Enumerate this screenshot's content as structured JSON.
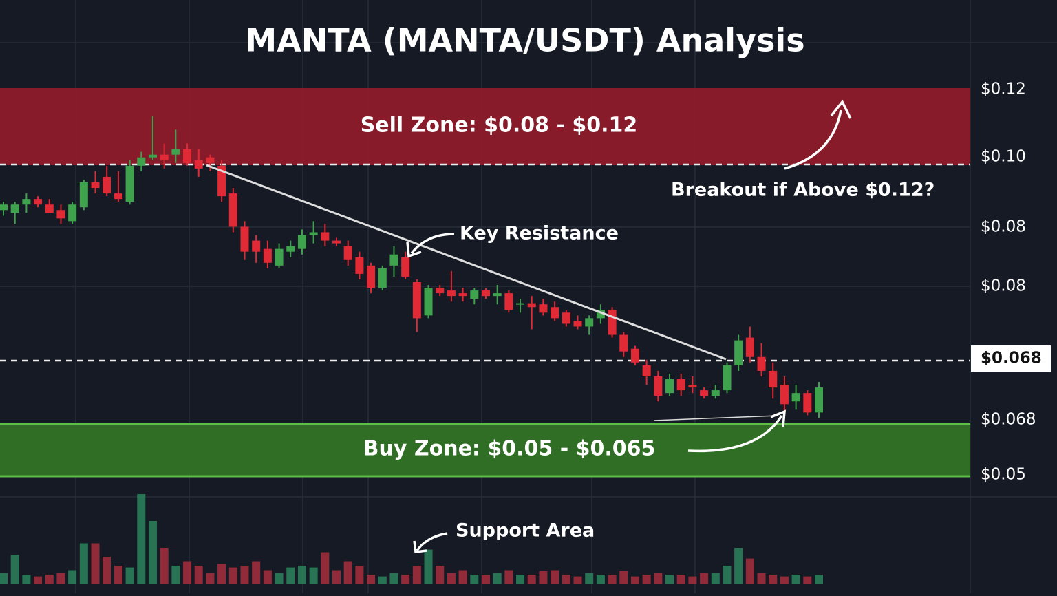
{
  "chart_data": {
    "type": "candlestick",
    "title": "MANTA (MANTA/USDT) Analysis",
    "ylim": [
      0.05,
      0.12
    ],
    "up_color": "#3fa34d",
    "down_color": "#e02a36",
    "price_labels": [
      "$0.12",
      "$0.10",
      "$0.08",
      "$0.08",
      "$0.068",
      "$0.068",
      "$0.05"
    ],
    "annotations": {
      "sell_zone": "Sell Zone: $0.08 - $0.12",
      "buy_zone": "Buy Zone: $0.05 - $0.065",
      "key_resistance": "Key Resistance",
      "breakout": "Breakout if Above $0.12?",
      "support_area": "Support Area"
    },
    "ohlc": [
      [
        0.098,
        0.0995,
        0.097,
        0.099
      ],
      [
        0.0975,
        0.0995,
        0.0955,
        0.099
      ],
      [
        0.099,
        0.101,
        0.0975,
        0.1
      ],
      [
        0.1,
        0.1005,
        0.0985,
        0.099
      ],
      [
        0.099,
        0.1,
        0.098,
        0.0975
      ],
      [
        0.098,
        0.099,
        0.0955,
        0.0965
      ],
      [
        0.096,
        0.0995,
        0.0955,
        0.099
      ],
      [
        0.0985,
        0.1035,
        0.098,
        0.103
      ],
      [
        0.103,
        0.105,
        0.101,
        0.102
      ],
      [
        0.104,
        0.106,
        0.1005,
        0.101
      ],
      [
        0.101,
        0.105,
        0.0995,
        0.1
      ],
      [
        0.0995,
        0.107,
        0.099,
        0.106
      ],
      [
        0.106,
        0.1085,
        0.105,
        0.1075
      ],
      [
        0.1075,
        0.115,
        0.107,
        0.108
      ],
      [
        0.108,
        0.11,
        0.1055,
        0.107
      ],
      [
        0.108,
        0.1125,
        0.1065,
        0.109
      ],
      [
        0.109,
        0.11,
        0.106,
        0.1065
      ],
      [
        0.107,
        0.109,
        0.104,
        0.1055
      ],
      [
        0.1075,
        0.108,
        0.105,
        0.1065
      ],
      [
        0.106,
        0.107,
        0.0995,
        0.1005
      ],
      [
        0.101,
        0.102,
        0.094,
        0.095
      ],
      [
        0.095,
        0.096,
        0.089,
        0.0905
      ],
      [
        0.0925,
        0.0935,
        0.0885,
        0.0905
      ],
      [
        0.091,
        0.0925,
        0.0875,
        0.0885
      ],
      [
        0.088,
        0.092,
        0.0875,
        0.091
      ],
      [
        0.0905,
        0.0925,
        0.0895,
        0.0915
      ],
      [
        0.091,
        0.0945,
        0.09,
        0.0935
      ],
      [
        0.0935,
        0.096,
        0.092,
        0.094
      ],
      [
        0.094,
        0.0955,
        0.0915,
        0.0925
      ],
      [
        0.0925,
        0.093,
        0.0915,
        0.092
      ],
      [
        0.0915,
        0.0925,
        0.088,
        0.089
      ],
      [
        0.0895,
        0.0905,
        0.0855,
        0.0865
      ],
      [
        0.088,
        0.0885,
        0.083,
        0.084
      ],
      [
        0.084,
        0.088,
        0.0835,
        0.0875
      ],
      [
        0.088,
        0.0915,
        0.086,
        0.09
      ],
      [
        0.0895,
        0.0905,
        0.0855,
        0.086
      ],
      [
        0.085,
        0.0855,
        0.076,
        0.0785
      ],
      [
        0.079,
        0.0845,
        0.0785,
        0.084
      ],
      [
        0.084,
        0.0845,
        0.0825,
        0.083
      ],
      [
        0.0835,
        0.087,
        0.0815,
        0.0825
      ],
      [
        0.083,
        0.084,
        0.0815,
        0.0825
      ],
      [
        0.082,
        0.084,
        0.081,
        0.0835
      ],
      [
        0.0835,
        0.084,
        0.082,
        0.0825
      ],
      [
        0.0825,
        0.0845,
        0.081,
        0.083
      ],
      [
        0.083,
        0.0835,
        0.0795,
        0.08
      ],
      [
        0.081,
        0.082,
        0.0795,
        0.0812
      ],
      [
        0.0812,
        0.0825,
        0.0765,
        0.0805
      ],
      [
        0.081,
        0.082,
        0.079,
        0.0795
      ],
      [
        0.0805,
        0.0815,
        0.078,
        0.0785
      ],
      [
        0.0795,
        0.08,
        0.077,
        0.0775
      ],
      [
        0.078,
        0.079,
        0.0765,
        0.077
      ],
      [
        0.077,
        0.079,
        0.0755,
        0.0785
      ],
      [
        0.0785,
        0.081,
        0.0775,
        0.08
      ],
      [
        0.08,
        0.0805,
        0.075,
        0.0755
      ],
      [
        0.0755,
        0.076,
        0.0715,
        0.0725
      ],
      [
        0.073,
        0.0735,
        0.07,
        0.0705
      ],
      [
        0.07,
        0.071,
        0.0665,
        0.068
      ],
      [
        0.068,
        0.069,
        0.0635,
        0.0645
      ],
      [
        0.065,
        0.0685,
        0.0645,
        0.0675
      ],
      [
        0.0675,
        0.0685,
        0.0645,
        0.0655
      ],
      [
        0.0665,
        0.068,
        0.065,
        0.066
      ],
      [
        0.0655,
        0.066,
        0.064,
        0.0645
      ],
      [
        0.0645,
        0.0665,
        0.064,
        0.0655
      ],
      [
        0.0655,
        0.0705,
        0.065,
        0.07
      ],
      [
        0.07,
        0.0755,
        0.069,
        0.0745
      ],
      [
        0.075,
        0.077,
        0.0705,
        0.0715
      ],
      [
        0.0715,
        0.074,
        0.068,
        0.069
      ],
      [
        0.069,
        0.0705,
        0.064,
        0.066
      ],
      [
        0.0665,
        0.068,
        0.0615,
        0.063
      ],
      [
        0.0635,
        0.0665,
        0.062,
        0.065
      ],
      [
        0.065,
        0.0655,
        0.061,
        0.0615
      ],
      [
        0.0615,
        0.067,
        0.0605,
        0.066
      ]
    ],
    "volume": [
      12,
      32,
      10,
      8,
      10,
      12,
      15,
      45,
      45,
      30,
      20,
      18,
      100,
      70,
      40,
      20,
      25,
      20,
      12,
      22,
      18,
      20,
      25,
      15,
      12,
      18,
      20,
      18,
      35,
      15,
      25,
      20,
      10,
      8,
      12,
      10,
      20,
      38,
      20,
      12,
      15,
      10,
      10,
      12,
      15,
      10,
      10,
      14,
      15,
      10,
      8,
      12,
      10,
      10,
      14,
      8,
      10,
      12,
      10,
      10,
      8,
      12,
      12,
      20,
      40,
      28,
      12,
      10,
      8,
      10,
      8,
      10
    ]
  }
}
